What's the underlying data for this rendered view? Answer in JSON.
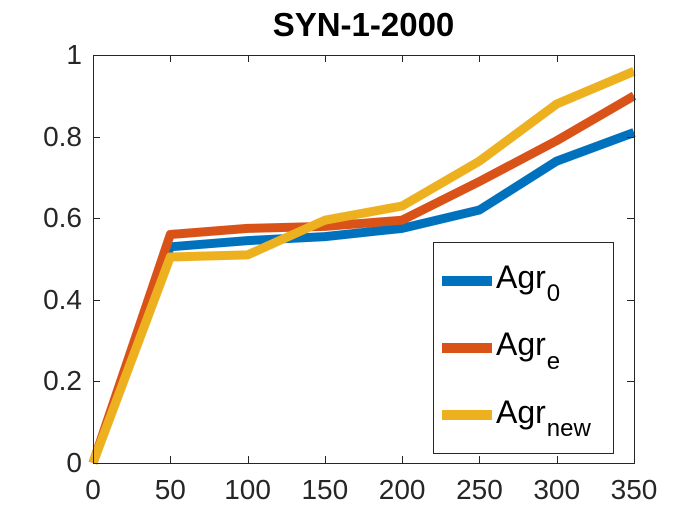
{
  "chart_data": {
    "type": "line",
    "title": "SYN-1-2000",
    "xlabel": "",
    "ylabel": "",
    "xlim": [
      0,
      350
    ],
    "ylim": [
      0,
      1
    ],
    "grid": false,
    "frame_box": true,
    "tick_direction": "in",
    "axis_color": "#262626",
    "x": [
      0,
      50,
      100,
      150,
      200,
      250,
      300,
      350
    ],
    "x_tick_values": [
      0,
      50,
      100,
      150,
      200,
      250,
      300,
      350
    ],
    "x_tick_labels": [
      "0",
      "50",
      "100",
      "150",
      "200",
      "250",
      "300",
      "350"
    ],
    "y_tick_values": [
      0,
      0.2,
      0.4,
      0.6,
      0.8,
      1
    ],
    "y_tick_labels": [
      "0",
      "0.2",
      "0.4",
      "0.6",
      "0.8",
      "1"
    ],
    "legend_position": "inside-lower-right",
    "series": [
      {
        "name": "Agr_0",
        "label_base": "Agr",
        "label_sub": "0",
        "color": "#0072BD",
        "values": [
          0,
          0.53,
          0.545,
          0.555,
          0.575,
          0.62,
          0.74,
          0.81
        ]
      },
      {
        "name": "Agr_e",
        "label_base": "Agr",
        "label_sub": "e",
        "color": "#D95319",
        "values": [
          0,
          0.56,
          0.575,
          0.58,
          0.595,
          0.69,
          0.79,
          0.9
        ]
      },
      {
        "name": "Agr_new",
        "label_base": "Agr",
        "label_sub": "new",
        "color": "#EDB120",
        "values": [
          0,
          0.505,
          0.51,
          0.595,
          0.63,
          0.74,
          0.88,
          0.96
        ]
      }
    ]
  }
}
